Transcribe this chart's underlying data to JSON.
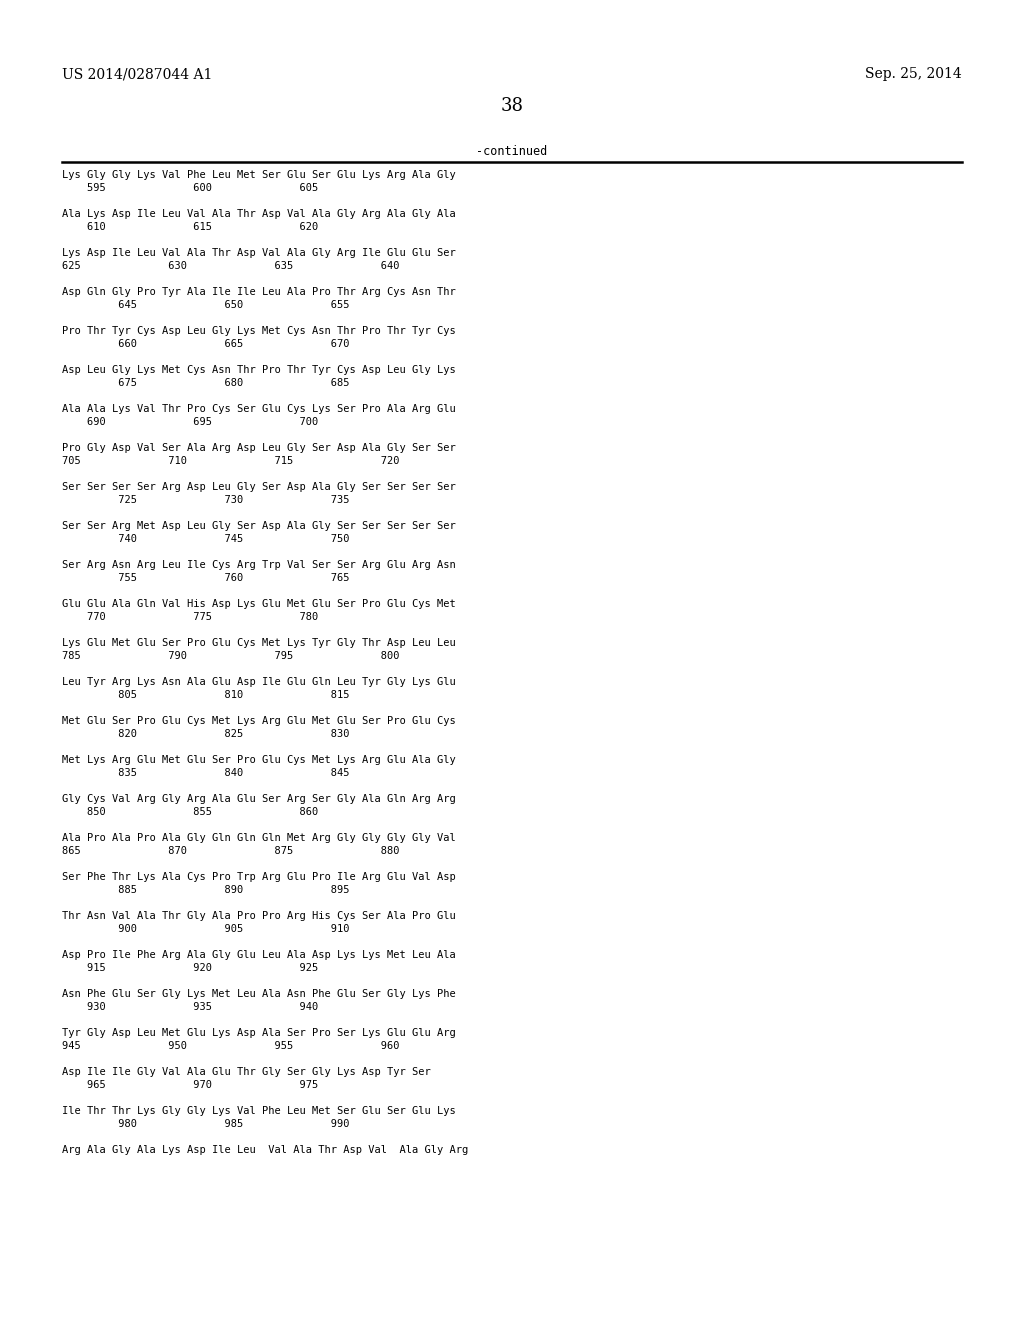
{
  "header_left": "US 2014/0287044 A1",
  "header_right": "Sep. 25, 2014",
  "page_number": "38",
  "continued_label": "-continued",
  "background_color": "#ffffff",
  "text_color": "#000000",
  "sequence_entries": [
    {
      "aa": "Lys Gly Gly Lys Val Phe Leu Met Ser Glu Ser Glu Lys Arg Ala Gly",
      "n1": "    595",
      "n2": "              600",
      "n3": "              605"
    },
    {
      "aa": "Ala Lys Asp Ile Leu Val Ala Thr Asp Val Ala Gly Arg Ala Gly Ala",
      "n1": "    610",
      "n2": "              615",
      "n3": "              620"
    },
    {
      "aa": "Lys Asp Ile Leu Val Ala Thr Asp Val Ala Gly Arg Ile Glu Glu Ser",
      "n1": "625",
      "n2": "              630",
      "n3": "              635              640"
    },
    {
      "aa": "Asp Gln Gly Pro Tyr Ala Ile Ile Leu Ala Pro Thr Arg Cys Asn Thr",
      "n1": "         645",
      "n2": "              650",
      "n3": "              655"
    },
    {
      "aa": "Pro Thr Tyr Cys Asp Leu Gly Lys Met Cys Asn Thr Pro Thr Tyr Cys",
      "n1": "         660",
      "n2": "              665",
      "n3": "              670"
    },
    {
      "aa": "Asp Leu Gly Lys Met Cys Asn Thr Pro Thr Tyr Cys Asp Leu Gly Lys",
      "n1": "         675",
      "n2": "              680",
      "n3": "              685"
    },
    {
      "aa": "Ala Ala Lys Val Thr Pro Cys Ser Glu Cys Lys Ser Pro Ala Arg Glu",
      "n1": "    690",
      "n2": "              695",
      "n3": "              700"
    },
    {
      "aa": "Pro Gly Asp Val Ser Ala Arg Asp Leu Gly Ser Asp Ala Gly Ser Ser",
      "n1": "705",
      "n2": "              710",
      "n3": "              715              720"
    },
    {
      "aa": "Ser Ser Ser Ser Arg Asp Leu Gly Ser Asp Ala Gly Ser Ser Ser Ser",
      "n1": "         725",
      "n2": "              730",
      "n3": "              735"
    },
    {
      "aa": "Ser Ser Arg Met Asp Leu Gly Ser Asp Ala Gly Ser Ser Ser Ser Ser",
      "n1": "         740",
      "n2": "              745",
      "n3": "              750"
    },
    {
      "aa": "Ser Arg Asn Arg Leu Ile Cys Arg Trp Val Ser Ser Arg Glu Arg Asn",
      "n1": "         755",
      "n2": "              760",
      "n3": "              765"
    },
    {
      "aa": "Glu Glu Ala Gln Val His Asp Lys Glu Met Glu Ser Pro Glu Cys Met",
      "n1": "    770",
      "n2": "              775",
      "n3": "              780"
    },
    {
      "aa": "Lys Glu Met Glu Ser Pro Glu Cys Met Lys Tyr Gly Thr Asp Leu Leu",
      "n1": "785",
      "n2": "              790",
      "n3": "              795              800"
    },
    {
      "aa": "Leu Tyr Arg Lys Asn Ala Glu Asp Ile Glu Gln Leu Tyr Gly Lys Glu",
      "n1": "         805",
      "n2": "              810",
      "n3": "              815"
    },
    {
      "aa": "Met Glu Ser Pro Glu Cys Met Lys Arg Glu Met Glu Ser Pro Glu Cys",
      "n1": "         820",
      "n2": "              825",
      "n3": "              830"
    },
    {
      "aa": "Met Lys Arg Glu Met Glu Ser Pro Glu Cys Met Lys Arg Glu Ala Gly",
      "n1": "         835",
      "n2": "              840",
      "n3": "              845"
    },
    {
      "aa": "Gly Cys Val Arg Gly Arg Ala Glu Ser Arg Ser Gly Ala Gln Arg Arg",
      "n1": "    850",
      "n2": "              855",
      "n3": "              860"
    },
    {
      "aa": "Ala Pro Ala Pro Ala Gly Gln Gln Gln Met Arg Gly Gly Gly Gly Val",
      "n1": "865",
      "n2": "              870",
      "n3": "              875              880"
    },
    {
      "aa": "Ser Phe Thr Lys Ala Cys Pro Trp Arg Glu Pro Ile Arg Glu Val Asp",
      "n1": "         885",
      "n2": "              890",
      "n3": "              895"
    },
    {
      "aa": "Thr Asn Val Ala Thr Gly Ala Pro Pro Arg His Cys Ser Ala Pro Glu",
      "n1": "         900",
      "n2": "              905",
      "n3": "              910"
    },
    {
      "aa": "Asp Pro Ile Phe Arg Ala Gly Glu Leu Ala Asp Lys Lys Met Leu Ala",
      "n1": "    915",
      "n2": "              920",
      "n3": "              925"
    },
    {
      "aa": "Asn Phe Glu Ser Gly Lys Met Leu Ala Asn Phe Glu Ser Gly Lys Phe",
      "n1": "    930",
      "n2": "              935",
      "n3": "              940"
    },
    {
      "aa": "Tyr Gly Asp Leu Met Glu Lys Asp Ala Ser Pro Ser Lys Glu Glu Arg",
      "n1": "945",
      "n2": "              950",
      "n3": "              955              960"
    },
    {
      "aa": "Asp Ile Ile Gly Val Ala Glu Thr Gly Ser Gly Lys Asp Tyr Ser",
      "n1": "    965",
      "n2": "              970",
      "n3": "              975"
    },
    {
      "aa": "Ile Thr Thr Lys Gly Gly Lys Val Phe Leu Met Ser Glu Ser Glu Lys",
      "n1": "         980",
      "n2": "              985",
      "n3": "              990"
    },
    {
      "aa": "Arg Ala Gly Ala Lys Asp Ile Leu  Val Ala Thr Asp Val  Ala Gly Arg",
      "n1": "",
      "n2": "",
      "n3": ""
    }
  ]
}
